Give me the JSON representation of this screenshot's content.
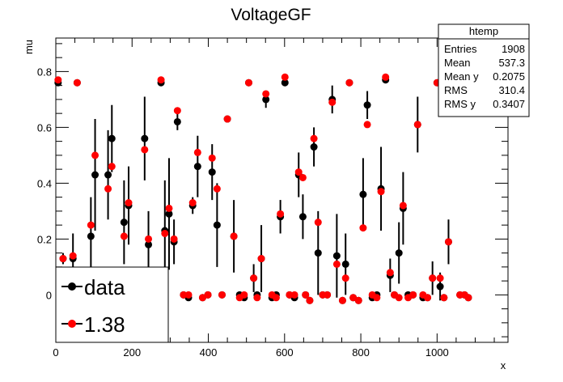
{
  "chart_data": {
    "type": "scatter",
    "title": "VoltageGF",
    "xlabel": "x",
    "ylabel": "mu",
    "xlim": [
      0,
      1186
    ],
    "ylim": [
      -0.17,
      0.92
    ],
    "xticks": [
      0,
      200,
      400,
      600,
      800,
      1000
    ],
    "yticks": [
      0,
      0.2,
      0.4,
      0.6,
      0.8
    ],
    "xtick_labels": [
      "0",
      "200",
      "400",
      "600",
      "800",
      "1000"
    ],
    "ytick_labels": [
      "0",
      "0.2",
      "0.4",
      "0.6",
      "0.8"
    ],
    "grid": false,
    "legend_position": "bottom-left",
    "stats_box": {
      "title": "htemp",
      "rows": [
        {
          "label": "Entries",
          "value": "1908"
        },
        {
          "label": "Mean",
          "value": "537.3"
        },
        {
          "label": "Mean y",
          "value": "0.2075"
        },
        {
          "label": "RMS",
          "value": "310.4"
        },
        {
          "label": "RMS y",
          "value": "0.3407"
        }
      ]
    },
    "series": [
      {
        "name": "data",
        "color": "#000000",
        "points": [
          {
            "x": 6,
            "y": 0.76,
            "err": 0.01
          },
          {
            "x": 19,
            "y": 0.13,
            "err": 0.02
          },
          {
            "x": 45,
            "y": 0.13,
            "err": 0.09
          },
          {
            "x": 56,
            "y": 0.76,
            "err": 0.01
          },
          {
            "x": 92,
            "y": 0.21,
            "err": 0.14
          },
          {
            "x": 103,
            "y": 0.43,
            "err": 0.2
          },
          {
            "x": 137,
            "y": 0.43,
            "err": 0.16
          },
          {
            "x": 147,
            "y": 0.56,
            "err": 0.12
          },
          {
            "x": 179,
            "y": 0.26,
            "err": 0.15
          },
          {
            "x": 191,
            "y": 0.32,
            "err": 0.14
          },
          {
            "x": 233,
            "y": 0.56,
            "err": 0.15
          },
          {
            "x": 243,
            "y": 0.18,
            "err": 0.12
          },
          {
            "x": 276,
            "y": 0.76,
            "err": 0.01
          },
          {
            "x": 286,
            "y": 0.23,
            "err": 0.18
          },
          {
            "x": 297,
            "y": 0.29,
            "err": 0.2
          },
          {
            "x": 310,
            "y": 0.19,
            "err": 0.08
          },
          {
            "x": 319,
            "y": 0.62,
            "err": 0.03
          },
          {
            "x": 335,
            "y": 0.0,
            "err": 0.01
          },
          {
            "x": 348,
            "y": -0.01,
            "err": 0.01
          },
          {
            "x": 359,
            "y": 0.32,
            "err": 0.03
          },
          {
            "x": 372,
            "y": 0.46,
            "err": 0.11
          },
          {
            "x": 385,
            "y": -0.01,
            "err": 0.01
          },
          {
            "x": 399,
            "y": 0.0,
            "err": 0.01
          },
          {
            "x": 410,
            "y": 0.44,
            "err": 0.1
          },
          {
            "x": 423,
            "y": 0.25,
            "err": 0.15
          },
          {
            "x": 436,
            "y": 0.0,
            "err": 0.01
          },
          {
            "x": 450,
            "y": 0.63,
            "err": 0.01
          },
          {
            "x": 467,
            "y": 0.21,
            "err": 0.13
          },
          {
            "x": 482,
            "y": 0.0,
            "err": 0.01
          },
          {
            "x": 494,
            "y": -0.01,
            "err": 0.01
          },
          {
            "x": 506,
            "y": 0.76,
            "err": 0.01
          },
          {
            "x": 519,
            "y": 0.06,
            "err": 0.05
          },
          {
            "x": 528,
            "y": 0.0,
            "err": 0.01
          },
          {
            "x": 539,
            "y": 0.13,
            "err": 0.12
          },
          {
            "x": 551,
            "y": 0.7,
            "err": 0.03
          },
          {
            "x": 567,
            "y": -0.01,
            "err": 0.01
          },
          {
            "x": 578,
            "y": 0.0,
            "err": 0.01
          },
          {
            "x": 589,
            "y": 0.28,
            "err": 0.06
          },
          {
            "x": 601,
            "y": 0.76,
            "err": 0.01
          },
          {
            "x": 613,
            "y": 0.0,
            "err": 0.01
          },
          {
            "x": 626,
            "y": -0.01,
            "err": 0.01
          },
          {
            "x": 637,
            "y": 0.43,
            "err": 0.08
          },
          {
            "x": 648,
            "y": 0.28,
            "err": 0.08
          },
          {
            "x": 655,
            "y": 0.0,
            "err": 0.01
          },
          {
            "x": 666,
            "y": -0.02,
            "err": 0.01
          },
          {
            "x": 677,
            "y": 0.53,
            "err": 0.07
          },
          {
            "x": 688,
            "y": 0.15,
            "err": 0.15
          },
          {
            "x": 700,
            "y": 0.0,
            "err": 0.01
          },
          {
            "x": 712,
            "y": 0.0,
            "err": 0.01
          },
          {
            "x": 725,
            "y": 0.7,
            "err": 0.05
          },
          {
            "x": 737,
            "y": 0.14,
            "err": 0.15
          },
          {
            "x": 752,
            "y": -0.02,
            "err": 0.01
          },
          {
            "x": 760,
            "y": 0.11,
            "err": 0.11
          },
          {
            "x": 770,
            "y": 0.76,
            "err": 0.01
          },
          {
            "x": 780,
            "y": -0.01,
            "err": 0.01
          },
          {
            "x": 794,
            "y": -0.02,
            "err": 0.01
          },
          {
            "x": 806,
            "y": 0.36,
            "err": 0.13
          },
          {
            "x": 817,
            "y": 0.68,
            "err": 0.05
          },
          {
            "x": 830,
            "y": -0.01,
            "err": 0.01
          },
          {
            "x": 842,
            "y": 0.0,
            "err": 0.01
          },
          {
            "x": 853,
            "y": 0.38,
            "err": 0.15
          },
          {
            "x": 865,
            "y": 0.77,
            "err": 0.01
          },
          {
            "x": 877,
            "y": 0.07,
            "err": 0.06
          },
          {
            "x": 888,
            "y": 0.0,
            "err": 0.01
          },
          {
            "x": 900,
            "y": 0.15,
            "err": 0.11
          },
          {
            "x": 911,
            "y": 0.31,
            "err": 0.13
          },
          {
            "x": 924,
            "y": 0.0,
            "err": 0.01
          },
          {
            "x": 937,
            "y": 0.0,
            "err": 0.01
          },
          {
            "x": 949,
            "y": 0.61,
            "err": 0.1
          },
          {
            "x": 963,
            "y": -0.01,
            "err": 0.01
          },
          {
            "x": 975,
            "y": -0.01,
            "err": 0.01
          },
          {
            "x": 988,
            "y": 0.06,
            "err": 0.06
          },
          {
            "x": 1000,
            "y": 0.76,
            "err": 0.01
          },
          {
            "x": 1008,
            "y": 0.03,
            "err": 0.05
          },
          {
            "x": 1018,
            "y": -0.01,
            "err": 0.01
          },
          {
            "x": 1030,
            "y": 0.19,
            "err": 0.08
          },
          {
            "x": 1045,
            "y": 0.74,
            "err": 0.01
          },
          {
            "x": 1060,
            "y": 0.0,
            "err": 0.01
          },
          {
            "x": 1072,
            "y": 0.0,
            "err": 0.01
          },
          {
            "x": 1082,
            "y": -0.01,
            "err": 0.01
          }
        ]
      },
      {
        "name": "1.38",
        "color": "#ff0000",
        "points": [
          {
            "x": 6,
            "y": 0.77
          },
          {
            "x": 19,
            "y": 0.13
          },
          {
            "x": 45,
            "y": 0.14
          },
          {
            "x": 56,
            "y": 0.76
          },
          {
            "x": 92,
            "y": 0.25
          },
          {
            "x": 103,
            "y": 0.5
          },
          {
            "x": 137,
            "y": 0.38
          },
          {
            "x": 147,
            "y": 0.46
          },
          {
            "x": 179,
            "y": 0.21
          },
          {
            "x": 191,
            "y": 0.33
          },
          {
            "x": 233,
            "y": 0.52
          },
          {
            "x": 243,
            "y": 0.2
          },
          {
            "x": 276,
            "y": 0.77
          },
          {
            "x": 286,
            "y": 0.22
          },
          {
            "x": 297,
            "y": 0.31
          },
          {
            "x": 310,
            "y": 0.2
          },
          {
            "x": 319,
            "y": 0.66
          },
          {
            "x": 335,
            "y": 0.0
          },
          {
            "x": 348,
            "y": 0.0
          },
          {
            "x": 359,
            "y": 0.33
          },
          {
            "x": 372,
            "y": 0.51
          },
          {
            "x": 385,
            "y": -0.01
          },
          {
            "x": 399,
            "y": 0.0
          },
          {
            "x": 410,
            "y": 0.49
          },
          {
            "x": 423,
            "y": 0.38
          },
          {
            "x": 436,
            "y": 0.0
          },
          {
            "x": 450,
            "y": 0.63
          },
          {
            "x": 467,
            "y": 0.21
          },
          {
            "x": 482,
            "y": -0.01
          },
          {
            "x": 494,
            "y": 0.0
          },
          {
            "x": 506,
            "y": 0.76
          },
          {
            "x": 519,
            "y": 0.06
          },
          {
            "x": 528,
            "y": -0.01
          },
          {
            "x": 539,
            "y": 0.13
          },
          {
            "x": 551,
            "y": 0.72
          },
          {
            "x": 567,
            "y": 0.0
          },
          {
            "x": 578,
            "y": -0.01
          },
          {
            "x": 589,
            "y": 0.29
          },
          {
            "x": 601,
            "y": 0.78
          },
          {
            "x": 613,
            "y": 0.0
          },
          {
            "x": 626,
            "y": 0.0
          },
          {
            "x": 637,
            "y": 0.44
          },
          {
            "x": 648,
            "y": 0.42
          },
          {
            "x": 655,
            "y": 0.0
          },
          {
            "x": 666,
            "y": -0.02
          },
          {
            "x": 677,
            "y": 0.56
          },
          {
            "x": 688,
            "y": 0.26
          },
          {
            "x": 700,
            "y": 0.0
          },
          {
            "x": 712,
            "y": 0.0
          },
          {
            "x": 725,
            "y": 0.69
          },
          {
            "x": 737,
            "y": 0.11
          },
          {
            "x": 752,
            "y": -0.02
          },
          {
            "x": 760,
            "y": 0.06
          },
          {
            "x": 770,
            "y": 0.76
          },
          {
            "x": 780,
            "y": -0.01
          },
          {
            "x": 794,
            "y": -0.02
          },
          {
            "x": 806,
            "y": 0.24
          },
          {
            "x": 817,
            "y": 0.61
          },
          {
            "x": 830,
            "y": 0.0
          },
          {
            "x": 842,
            "y": -0.01
          },
          {
            "x": 853,
            "y": 0.37
          },
          {
            "x": 865,
            "y": 0.78
          },
          {
            "x": 877,
            "y": 0.08
          },
          {
            "x": 888,
            "y": 0.0
          },
          {
            "x": 900,
            "y": -0.01
          },
          {
            "x": 911,
            "y": 0.32
          },
          {
            "x": 924,
            "y": -0.01
          },
          {
            "x": 937,
            "y": 0.0
          },
          {
            "x": 949,
            "y": 0.61
          },
          {
            "x": 963,
            "y": 0.0
          },
          {
            "x": 975,
            "y": -0.01
          },
          {
            "x": 988,
            "y": 0.06
          },
          {
            "x": 1000,
            "y": 0.76
          },
          {
            "x": 1008,
            "y": 0.06
          },
          {
            "x": 1018,
            "y": -0.01
          },
          {
            "x": 1030,
            "y": 0.19
          },
          {
            "x": 1045,
            "y": 0.74
          },
          {
            "x": 1060,
            "y": 0.0
          },
          {
            "x": 1072,
            "y": 0.0
          },
          {
            "x": 1082,
            "y": -0.01
          }
        ]
      }
    ]
  }
}
